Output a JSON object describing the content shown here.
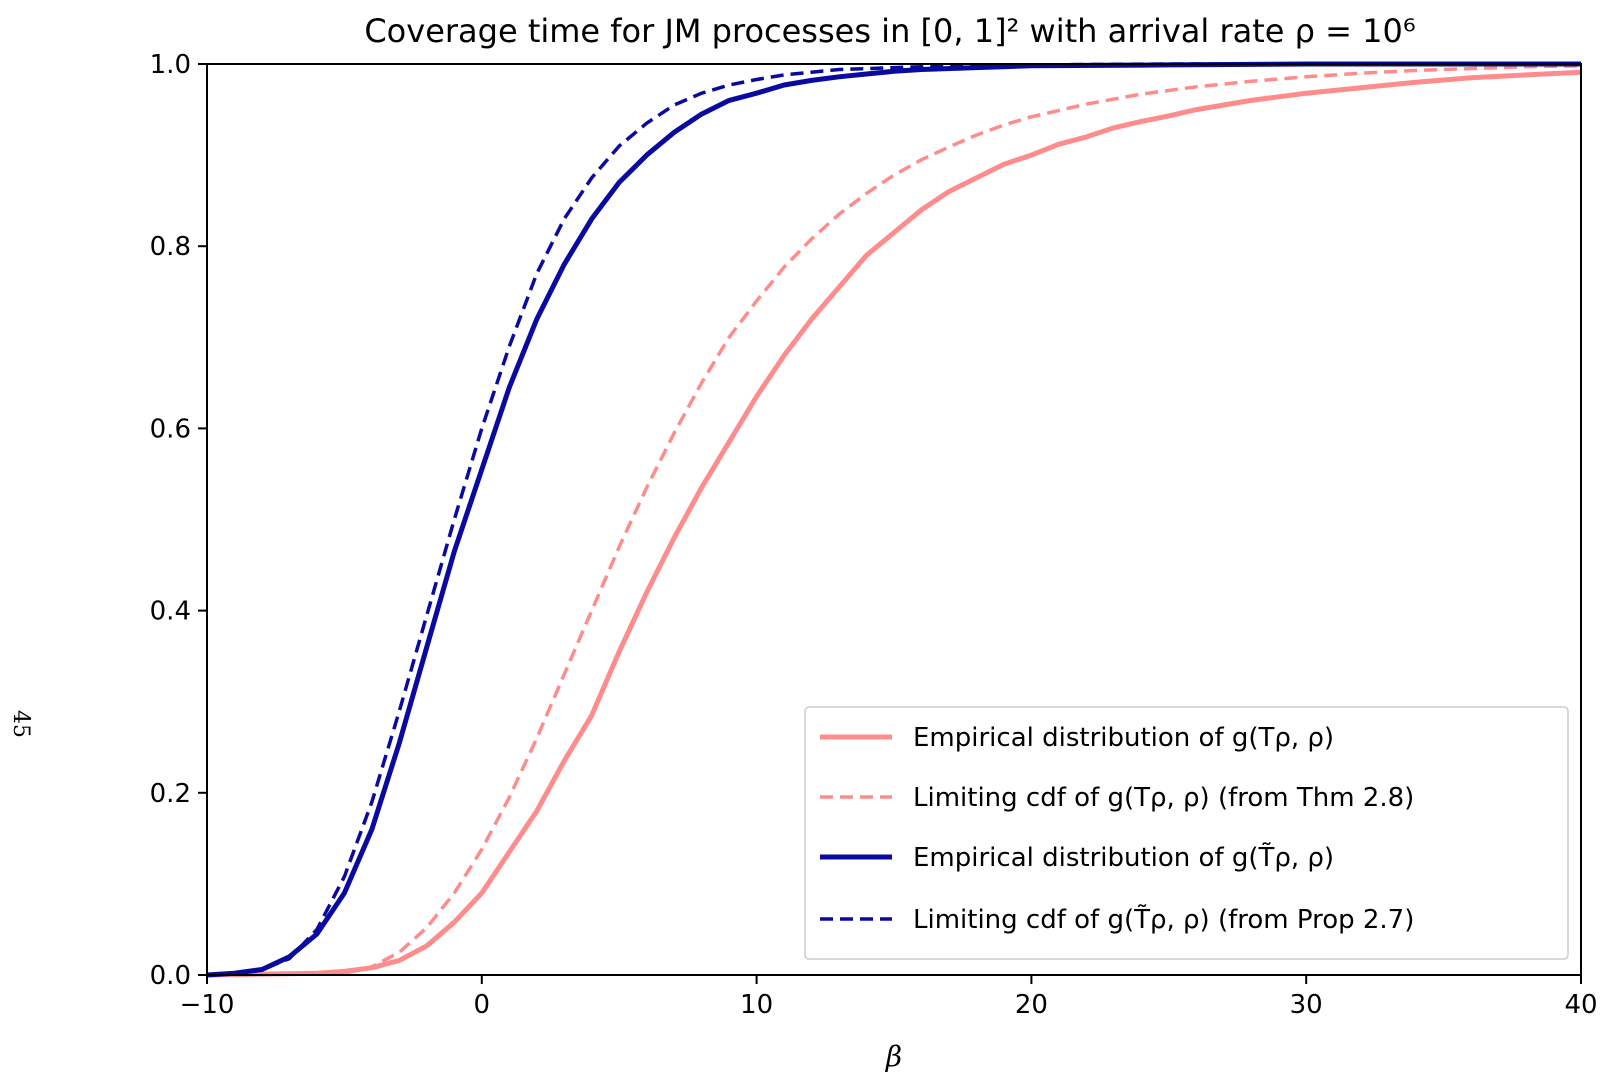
{
  "page": {
    "side_number": "45"
  },
  "chart_data": {
    "type": "line",
    "title": "Coverage time for JM processes in [0, 1]² with arrival rate ρ = 10⁶",
    "xlabel": "β",
    "ylabel": "",
    "xlim": [
      -10,
      40
    ],
    "ylim": [
      0,
      1
    ],
    "xticks": [
      -10,
      0,
      10,
      20,
      30,
      40
    ],
    "yticks": [
      0.0,
      0.2,
      0.4,
      0.6,
      0.8,
      1.0
    ],
    "xtick_labels": [
      "−10",
      "0",
      "10",
      "20",
      "30",
      "40"
    ],
    "ytick_labels": [
      "0.0",
      "0.2",
      "0.4",
      "0.6",
      "0.8",
      "1.0"
    ],
    "grid": false,
    "legend_position": "lower-right",
    "series": [
      {
        "name": "Empirical distribution of g(Tρ, ρ)",
        "color": "#ff8c8c",
        "style": "solid",
        "x": [
          -10,
          -6,
          -5,
          -4,
          -3,
          -2,
          -1,
          0,
          1,
          2,
          3,
          4,
          5,
          6,
          7,
          8,
          9,
          10,
          11,
          12,
          13,
          14,
          15,
          16,
          17,
          18,
          19,
          20,
          21,
          22,
          23,
          24,
          25,
          26,
          27,
          28,
          29,
          30,
          32,
          34,
          36,
          38,
          40
        ],
        "y": [
          0.0,
          0.002,
          0.004,
          0.008,
          0.016,
          0.032,
          0.058,
          0.09,
          0.135,
          0.18,
          0.235,
          0.285,
          0.355,
          0.42,
          0.48,
          0.535,
          0.585,
          0.635,
          0.68,
          0.72,
          0.755,
          0.79,
          0.815,
          0.84,
          0.86,
          0.875,
          0.89,
          0.9,
          0.912,
          0.92,
          0.93,
          0.937,
          0.943,
          0.95,
          0.955,
          0.96,
          0.964,
          0.968,
          0.974,
          0.98,
          0.985,
          0.988,
          0.991
        ]
      },
      {
        "name": "Limiting cdf of g(Tρ, ρ) (from Thm 2.8)",
        "color": "#ff8c8c",
        "style": "dashed",
        "x": [
          -5,
          -4,
          -3,
          -2,
          -1,
          0,
          1,
          2,
          3,
          4,
          5,
          6,
          7,
          8,
          9,
          10,
          11,
          12,
          13,
          14,
          15,
          16,
          17,
          18,
          19,
          20,
          22,
          24,
          26,
          28,
          30,
          32,
          34,
          36,
          38,
          40
        ],
        "y": [
          0.002,
          0.009,
          0.025,
          0.052,
          0.09,
          0.138,
          0.195,
          0.26,
          0.33,
          0.4,
          0.47,
          0.535,
          0.595,
          0.65,
          0.7,
          0.74,
          0.777,
          0.808,
          0.835,
          0.858,
          0.878,
          0.895,
          0.909,
          0.922,
          0.933,
          0.942,
          0.956,
          0.967,
          0.975,
          0.981,
          0.986,
          0.99,
          0.993,
          0.995,
          0.997,
          0.998
        ]
      },
      {
        "name": "Empirical distribution of g(T̃ρ, ρ)",
        "color": "#0a0aa0",
        "style": "solid",
        "x": [
          -10,
          -9,
          -8,
          -7,
          -6,
          -5,
          -4,
          -3,
          -2,
          -1,
          0,
          1,
          2,
          3,
          4,
          5,
          6,
          7,
          8,
          9,
          10,
          11,
          12,
          13,
          14,
          15,
          16,
          18,
          20,
          25,
          30,
          35,
          40
        ],
        "y": [
          0.0,
          0.002,
          0.006,
          0.02,
          0.045,
          0.09,
          0.16,
          0.255,
          0.36,
          0.465,
          0.555,
          0.645,
          0.72,
          0.78,
          0.83,
          0.87,
          0.9,
          0.925,
          0.945,
          0.96,
          0.968,
          0.977,
          0.982,
          0.986,
          0.989,
          0.992,
          0.994,
          0.996,
          0.998,
          0.999,
          1.0,
          1.0,
          1.0
        ]
      },
      {
        "name": "Limiting cdf of g(T̃ρ, ρ) (from Prop 2.7)",
        "color": "#0a0aa0",
        "style": "dashed",
        "x": [
          -10,
          -9,
          -8,
          -7,
          -6,
          -5,
          -4,
          -3,
          -2,
          -1,
          0,
          1,
          2,
          3,
          4,
          5,
          6,
          7,
          8,
          9,
          10,
          11,
          12,
          13,
          14,
          15,
          16,
          18,
          20,
          25,
          30,
          35,
          40
        ],
        "y": [
          0.0,
          0.002,
          0.006,
          0.018,
          0.05,
          0.108,
          0.19,
          0.29,
          0.395,
          0.5,
          0.6,
          0.69,
          0.77,
          0.83,
          0.875,
          0.91,
          0.935,
          0.955,
          0.968,
          0.977,
          0.983,
          0.988,
          0.991,
          0.994,
          0.995,
          0.996,
          0.997,
          0.998,
          0.999,
          1.0,
          1.0,
          1.0,
          1.0
        ]
      }
    ]
  }
}
